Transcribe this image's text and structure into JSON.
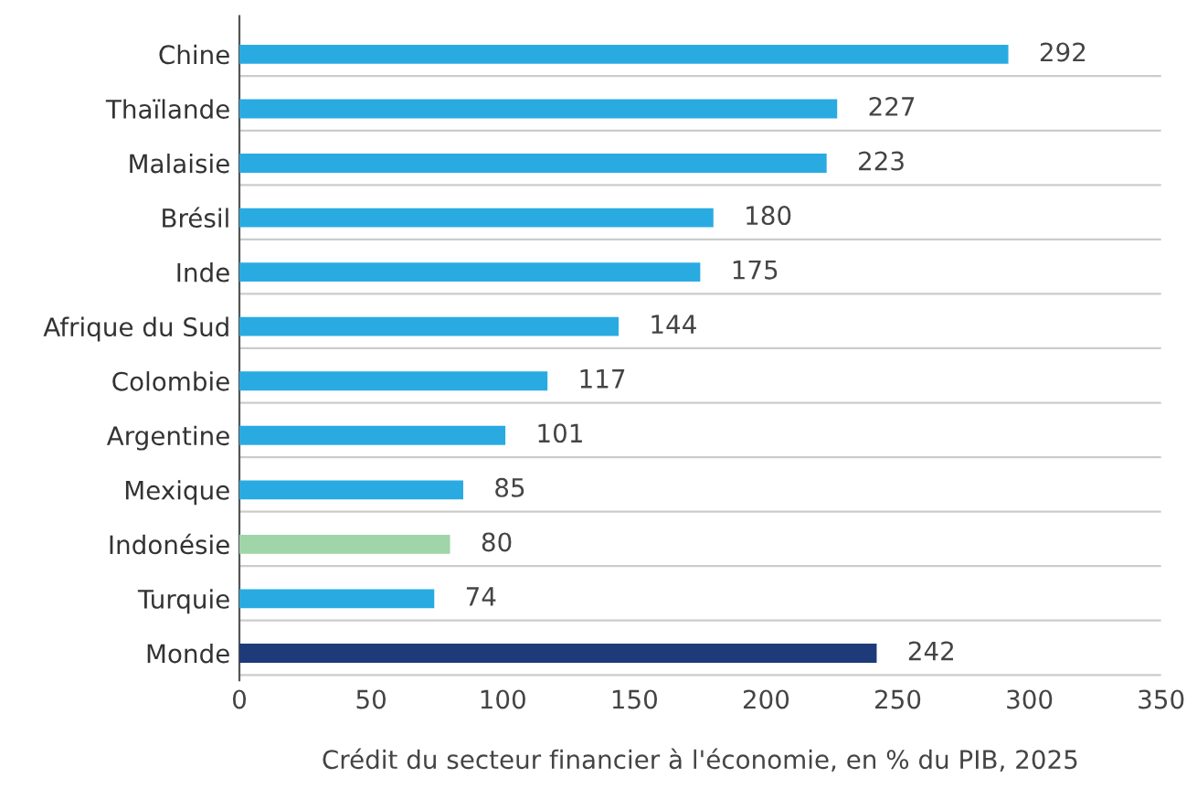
{
  "chart_data": {
    "type": "bar",
    "orientation": "horizontal",
    "xlabel": "Crédit du secteur financier à l'économie, en % du PIB, 2025",
    "categories": [
      "Chine",
      "Thaïlande",
      "Malaisie",
      "Brésil",
      "Inde",
      "Afrique du Sud",
      "Colombie",
      "Argentine",
      "Mexique",
      "Indonésie",
      "Turquie",
      "Monde"
    ],
    "values": [
      292,
      227,
      223,
      180,
      175,
      144,
      117,
      101,
      85,
      80,
      74,
      242
    ],
    "colors": [
      "#29abe2",
      "#29abe2",
      "#29abe2",
      "#29abe2",
      "#29abe2",
      "#29abe2",
      "#29abe2",
      "#29abe2",
      "#29abe2",
      "#9fd5a9",
      "#29abe2",
      "#1f3a78"
    ],
    "xlim": [
      0,
      350
    ],
    "xticks": [
      0,
      50,
      100,
      150,
      200,
      250,
      300,
      350
    ],
    "grid": "y",
    "data_labels": true
  }
}
